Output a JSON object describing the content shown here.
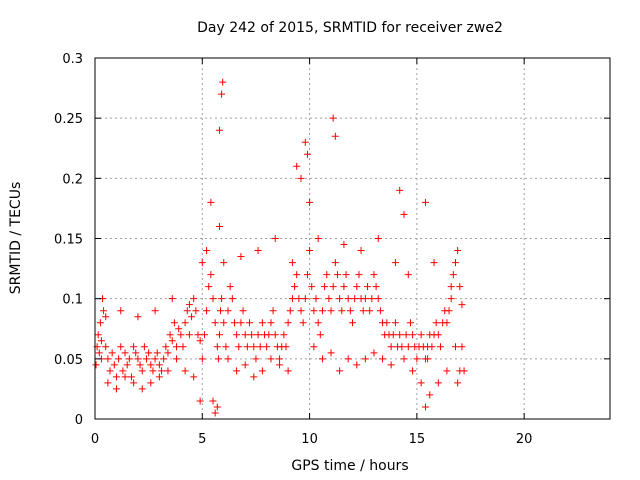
{
  "chart_data": {
    "type": "scatter",
    "title": "Day 242 of 2015, SRMTID for receiver zwe2",
    "xlabel": "GPS time / hours",
    "ylabel": "SRMTID / TECUs",
    "xlim": [
      0,
      24
    ],
    "ylim": [
      0,
      0.3
    ],
    "x_ticks": [
      0,
      5,
      10,
      15,
      20
    ],
    "x_tick_labels": [
      "0",
      "5",
      "10",
      "15",
      "20"
    ],
    "y_ticks": [
      0,
      0.05,
      0.1,
      0.15,
      0.2,
      0.25,
      0.3
    ],
    "y_tick_labels": [
      "0",
      "0.05",
      "0.1",
      "0.15",
      "0.2",
      "0.25",
      "0.3"
    ],
    "grid": true,
    "marker": "plus",
    "color": "#ff0000",
    "series": [
      {
        "name": "zwe2",
        "x": [
          0.05,
          0.1,
          0.15,
          0.2,
          0.25,
          0.3,
          0.35,
          0.4,
          0.5,
          0.6,
          0.7,
          0.8,
          0.9,
          1.0,
          1.1,
          1.2,
          1.3,
          1.4,
          1.5,
          1.6,
          1.7,
          1.8,
          1.9,
          2.0,
          2.1,
          2.2,
          2.3,
          2.4,
          2.5,
          2.6,
          2.7,
          2.8,
          2.9,
          3.0,
          3.1,
          3.2,
          3.3,
          3.4,
          3.5,
          3.6,
          3.7,
          3.8,
          3.9,
          4.0,
          4.1,
          4.2,
          4.3,
          4.4,
          4.5,
          4.6,
          4.7,
          4.8,
          4.9,
          5.0,
          5.1,
          5.2,
          5.3,
          5.4,
          5.5,
          5.6,
          5.7,
          5.75,
          5.8,
          5.85,
          5.9,
          6.0,
          6.1,
          6.2,
          6.3,
          6.4,
          6.5,
          6.6,
          6.7,
          6.8,
          6.9,
          7.0,
          7.1,
          7.2,
          7.3,
          7.4,
          7.5,
          7.6,
          7.7,
          7.8,
          7.9,
          8.0,
          8.1,
          8.2,
          8.3,
          8.4,
          8.5,
          8.6,
          8.7,
          8.8,
          8.9,
          9.0,
          9.1,
          9.2,
          9.3,
          9.4,
          9.5,
          9.6,
          9.7,
          9.8,
          9.9,
          10.0,
          10.1,
          10.2,
          10.3,
          10.4,
          10.5,
          10.6,
          10.7,
          10.8,
          10.9,
          11.0,
          11.1,
          11.2,
          11.3,
          11.4,
          11.5,
          11.6,
          11.7,
          11.8,
          11.9,
          12.0,
          12.1,
          12.2,
          12.3,
          12.4,
          12.5,
          12.6,
          12.7,
          12.8,
          12.9,
          13.0,
          13.1,
          13.2,
          13.3,
          13.4,
          13.5,
          13.6,
          13.7,
          13.8,
          13.9,
          14.0,
          14.1,
          14.2,
          14.3,
          14.4,
          14.5,
          14.6,
          14.7,
          14.8,
          14.9,
          15.0,
          15.1,
          15.2,
          15.3,
          15.4,
          15.5,
          15.6,
          15.7,
          15.8,
          15.9,
          16.0,
          16.1,
          16.2,
          16.3,
          16.4,
          16.5,
          16.6,
          16.7,
          16.8,
          16.9,
          17.0,
          17.1,
          17.2,
          0.3,
          0.6,
          1.0,
          1.4,
          1.8,
          2.2,
          2.6,
          3.0,
          3.4,
          3.8,
          4.2,
          4.6,
          5.0,
          5.4,
          5.8,
          5.9,
          5.95,
          6.2,
          6.6,
          7.0,
          7.4,
          7.8,
          8.2,
          8.6,
          9.0,
          9.4,
          9.6,
          9.8,
          9.9,
          10.0,
          10.2,
          10.6,
          11.0,
          11.1,
          11.2,
          11.4,
          11.8,
          12.2,
          12.6,
          13.0,
          13.4,
          13.8,
          14.2,
          14.4,
          14.8,
          15.2,
          15.4,
          15.6,
          16.0,
          16.4,
          16.8,
          17.0,
          5.5,
          5.6,
          5.7,
          5.8,
          4.9,
          15.4,
          15.5,
          16.9,
          17.1,
          0.5,
          1.2,
          2.0,
          2.8,
          3.6,
          4.4,
          5.2,
          6.0,
          6.8,
          7.6,
          8.4,
          9.2,
          10.4,
          11.6,
          12.4,
          13.2,
          14.0,
          14.6,
          15.8,
          16.6
        ],
        "y": [
          0.045,
          0.06,
          0.07,
          0.055,
          0.08,
          0.065,
          0.1,
          0.09,
          0.06,
          0.05,
          0.04,
          0.055,
          0.045,
          0.035,
          0.05,
          0.06,
          0.04,
          0.055,
          0.045,
          0.05,
          0.035,
          0.06,
          0.055,
          0.05,
          0.045,
          0.04,
          0.06,
          0.05,
          0.055,
          0.045,
          0.04,
          0.05,
          0.055,
          0.045,
          0.04,
          0.05,
          0.06,
          0.055,
          0.07,
          0.065,
          0.08,
          0.06,
          0.075,
          0.07,
          0.06,
          0.08,
          0.09,
          0.07,
          0.085,
          0.1,
          0.09,
          0.07,
          0.065,
          0.05,
          0.07,
          0.09,
          0.11,
          0.12,
          0.1,
          0.08,
          0.06,
          0.05,
          0.07,
          0.09,
          0.1,
          0.08,
          0.06,
          0.09,
          0.11,
          0.1,
          0.08,
          0.07,
          0.06,
          0.08,
          0.09,
          0.07,
          0.06,
          0.08,
          0.07,
          0.06,
          0.05,
          0.07,
          0.06,
          0.08,
          0.07,
          0.06,
          0.07,
          0.08,
          0.09,
          0.07,
          0.06,
          0.05,
          0.06,
          0.07,
          0.06,
          0.08,
          0.09,
          0.1,
          0.11,
          0.12,
          0.1,
          0.09,
          0.08,
          0.1,
          0.12,
          0.14,
          0.11,
          0.09,
          0.1,
          0.08,
          0.07,
          0.09,
          0.11,
          0.12,
          0.1,
          0.09,
          0.11,
          0.13,
          0.12,
          0.1,
          0.09,
          0.11,
          0.12,
          0.1,
          0.09,
          0.08,
          0.1,
          0.11,
          0.12,
          0.1,
          0.09,
          0.1,
          0.11,
          0.09,
          0.1,
          0.12,
          0.11,
          0.1,
          0.09,
          0.08,
          0.07,
          0.08,
          0.07,
          0.06,
          0.07,
          0.08,
          0.06,
          0.07,
          0.06,
          0.05,
          0.07,
          0.06,
          0.08,
          0.07,
          0.06,
          0.05,
          0.06,
          0.07,
          0.06,
          0.05,
          0.06,
          0.07,
          0.06,
          0.07,
          0.08,
          0.07,
          0.06,
          0.08,
          0.09,
          0.08,
          0.09,
          0.1,
          0.12,
          0.13,
          0.14,
          0.11,
          0.06,
          0.04,
          0.05,
          0.03,
          0.025,
          0.035,
          0.03,
          0.025,
          0.03,
          0.035,
          0.04,
          0.05,
          0.04,
          0.035,
          0.13,
          0.18,
          0.24,
          0.27,
          0.28,
          0.05,
          0.04,
          0.045,
          0.035,
          0.04,
          0.05,
          0.045,
          0.04,
          0.21,
          0.2,
          0.23,
          0.22,
          0.18,
          0.06,
          0.05,
          0.055,
          0.25,
          0.235,
          0.04,
          0.05,
          0.045,
          0.05,
          0.055,
          0.05,
          0.045,
          0.19,
          0.17,
          0.04,
          0.03,
          0.18,
          0.02,
          0.03,
          0.04,
          0.06,
          0.04,
          0.015,
          0.005,
          0.01,
          0.16,
          0.015,
          0.01,
          0.05,
          0.03,
          0.095,
          0.085,
          0.09,
          0.085,
          0.09,
          0.1,
          0.095,
          0.14,
          0.13,
          0.135,
          0.14,
          0.15,
          0.13,
          0.15,
          0.145,
          0.14,
          0.15,
          0.13,
          0.12,
          0.13,
          0.11
        ]
      }
    ]
  }
}
